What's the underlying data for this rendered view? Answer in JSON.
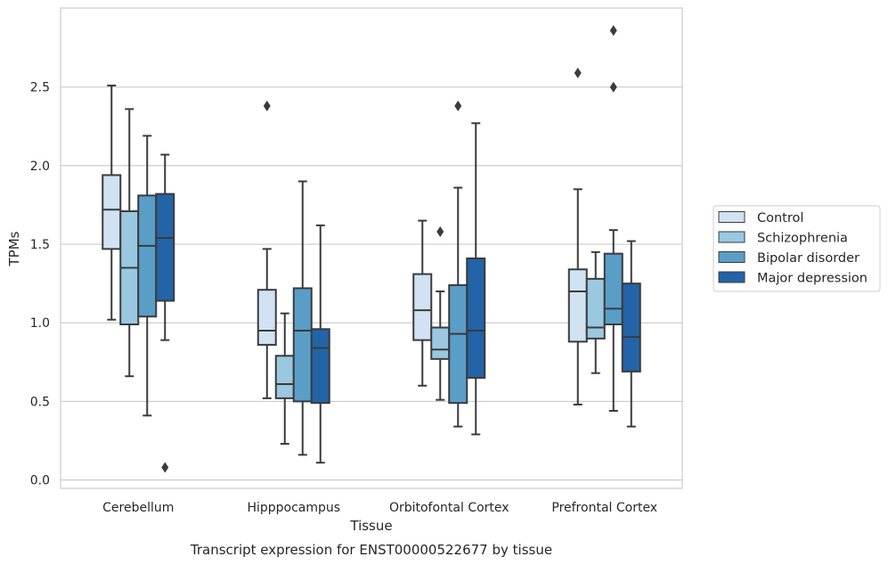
{
  "chart_data": {
    "type": "box",
    "title": "Transcript expression for ENST00000522677 by tissue",
    "xlabel": "Tissue",
    "ylabel": "TPMs",
    "ylim": [
      -0.05,
      2.95
    ],
    "yticks": [
      "0.0",
      "0.5",
      "1.0",
      "1.5",
      "2.0",
      "2.5"
    ],
    "grid": "horizontal",
    "legend_position": "right",
    "categories": [
      "Cerebellum",
      "Hipppocampus",
      "Orbitofontal Cortex",
      "Prefrontal Cortex"
    ],
    "series": [
      {
        "name": "Control",
        "color": "#d1e2f2",
        "boxes": [
          {
            "whislo": 1.02,
            "q1": 1.47,
            "med": 1.72,
            "q3": 1.94,
            "whishi": 2.51,
            "fliers": []
          },
          {
            "whislo": 0.52,
            "q1": 0.86,
            "med": 0.95,
            "q3": 1.21,
            "whishi": 1.47,
            "fliers": [
              2.38
            ]
          },
          {
            "whislo": 0.6,
            "q1": 0.89,
            "med": 1.08,
            "q3": 1.31,
            "whishi": 1.65,
            "fliers": []
          },
          {
            "whislo": 0.48,
            "q1": 0.88,
            "med": 1.2,
            "q3": 1.34,
            "whishi": 1.85,
            "fliers": [
              2.59
            ]
          }
        ]
      },
      {
        "name": "Schizophrenia",
        "color": "#9ac8e0",
        "boxes": [
          {
            "whislo": 0.66,
            "q1": 0.99,
            "med": 1.35,
            "q3": 1.71,
            "whishi": 2.36,
            "fliers": []
          },
          {
            "whislo": 0.23,
            "q1": 0.52,
            "med": 0.61,
            "q3": 0.79,
            "whishi": 1.06,
            "fliers": []
          },
          {
            "whislo": 0.51,
            "q1": 0.77,
            "med": 0.83,
            "q3": 0.97,
            "whishi": 1.2,
            "fliers": [
              1.58
            ]
          },
          {
            "whislo": 0.68,
            "q1": 0.9,
            "med": 0.97,
            "q3": 1.28,
            "whishi": 1.45,
            "fliers": []
          }
        ]
      },
      {
        "name": "Bipolar disorder",
        "color": "#5a9ec8",
        "boxes": [
          {
            "whislo": 0.41,
            "q1": 1.04,
            "med": 1.49,
            "q3": 1.81,
            "whishi": 2.19,
            "fliers": []
          },
          {
            "whislo": 0.16,
            "q1": 0.5,
            "med": 0.95,
            "q3": 1.22,
            "whishi": 1.9,
            "fliers": []
          },
          {
            "whislo": 0.34,
            "q1": 0.49,
            "med": 0.93,
            "q3": 1.24,
            "whishi": 1.86,
            "fliers": [
              2.38
            ]
          },
          {
            "whislo": 0.44,
            "q1": 0.99,
            "med": 1.09,
            "q3": 1.44,
            "whishi": 1.59,
            "fliers": [
              2.5,
              2.86
            ]
          }
        ]
      },
      {
        "name": "Major depression",
        "color": "#2363a7",
        "boxes": [
          {
            "whislo": 0.89,
            "q1": 1.14,
            "med": 1.54,
            "q3": 1.82,
            "whishi": 2.07,
            "fliers": [
              0.08
            ]
          },
          {
            "whislo": 0.11,
            "q1": 0.49,
            "med": 0.84,
            "q3": 0.96,
            "whishi": 1.62,
            "fliers": []
          },
          {
            "whislo": 0.29,
            "q1": 0.65,
            "med": 0.95,
            "q3": 1.41,
            "whishi": 2.27,
            "fliers": []
          },
          {
            "whislo": 0.34,
            "q1": 0.69,
            "med": 0.91,
            "q3": 1.25,
            "whishi": 1.52,
            "fliers": []
          }
        ]
      }
    ]
  }
}
